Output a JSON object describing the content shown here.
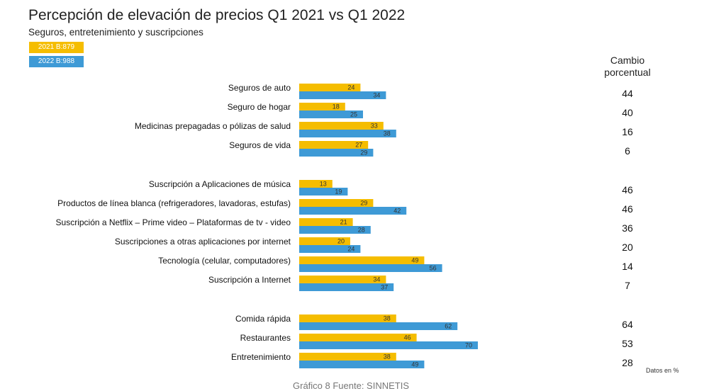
{
  "header": {
    "title": "Percepción de elevación de precios Q1 2021 vs Q1 2022",
    "subtitle": "Seguros, entretenimiento y suscripciones"
  },
  "legend": {
    "items": [
      {
        "label": "2021 B:879",
        "color": "#F5BD00"
      },
      {
        "label": "2022 B:988",
        "color": "#3E9AD6"
      }
    ]
  },
  "change_column": {
    "header_line1": "Cambio",
    "header_line2": "porcentual"
  },
  "footnote": "Datos en %",
  "caption_cut": "Gráfico 8 Fuente: SINNETIS",
  "chart_data": {
    "type": "bar",
    "orientation": "horizontal",
    "title": "Percepción de elevación de precios Q1 2021 vs Q1 2022",
    "subtitle": "Seguros, entretenimiento y suscripciones",
    "groups": [
      {
        "categories": [
          "Seguros de auto",
          "Seguro de hogar",
          "Medicinas prepagadas o pólizas de salud",
          "Seguros de vida"
        ]
      },
      {
        "categories": [
          "Suscripción a Aplicaciones de música",
          "Productos de línea blanca (refrigeradores, lavadoras, estufas)",
          "Suscripción a Netflix – Prime video – Plataformas de tv - video",
          "Suscripciones a otras aplicaciones por internet",
          "Tecnología (celular, computadores)",
          "Suscripción a Internet"
        ]
      },
      {
        "categories": [
          "Comida rápida",
          "Restaurantes",
          "Entretenimiento"
        ]
      }
    ],
    "categories": [
      "Seguros de auto",
      "Seguro de hogar",
      "Medicinas prepagadas o pólizas de salud",
      "Seguros de vida",
      "Suscripción a Aplicaciones de música",
      "Productos de línea blanca (refrigeradores, lavadoras, estufas)",
      "Suscripción a Netflix – Prime video – Plataformas de tv - video",
      "Suscripciones a otras aplicaciones por internet",
      "Tecnología (celular, computadores)",
      "Suscripción a Internet",
      "Comida rápida",
      "Restaurantes",
      "Entretenimiento"
    ],
    "series": [
      {
        "name": "2021 B:879",
        "color": "#F5BD00",
        "values": [
          24,
          18,
          33,
          27,
          13,
          29,
          21,
          20,
          49,
          34,
          38,
          46,
          38
        ]
      },
      {
        "name": "2022 B:988",
        "color": "#3E9AD6",
        "values": [
          34,
          25,
          38,
          29,
          19,
          42,
          28,
          24,
          56,
          37,
          62,
          70,
          49
        ]
      }
    ],
    "percent_change": [
      44,
      40,
      16,
      6,
      46,
      46,
      36,
      20,
      14,
      7,
      64,
      53,
      28
    ],
    "unit_note": "Datos en %",
    "xlim": [
      0,
      70
    ],
    "grid": false,
    "legend_position": "top-left"
  }
}
